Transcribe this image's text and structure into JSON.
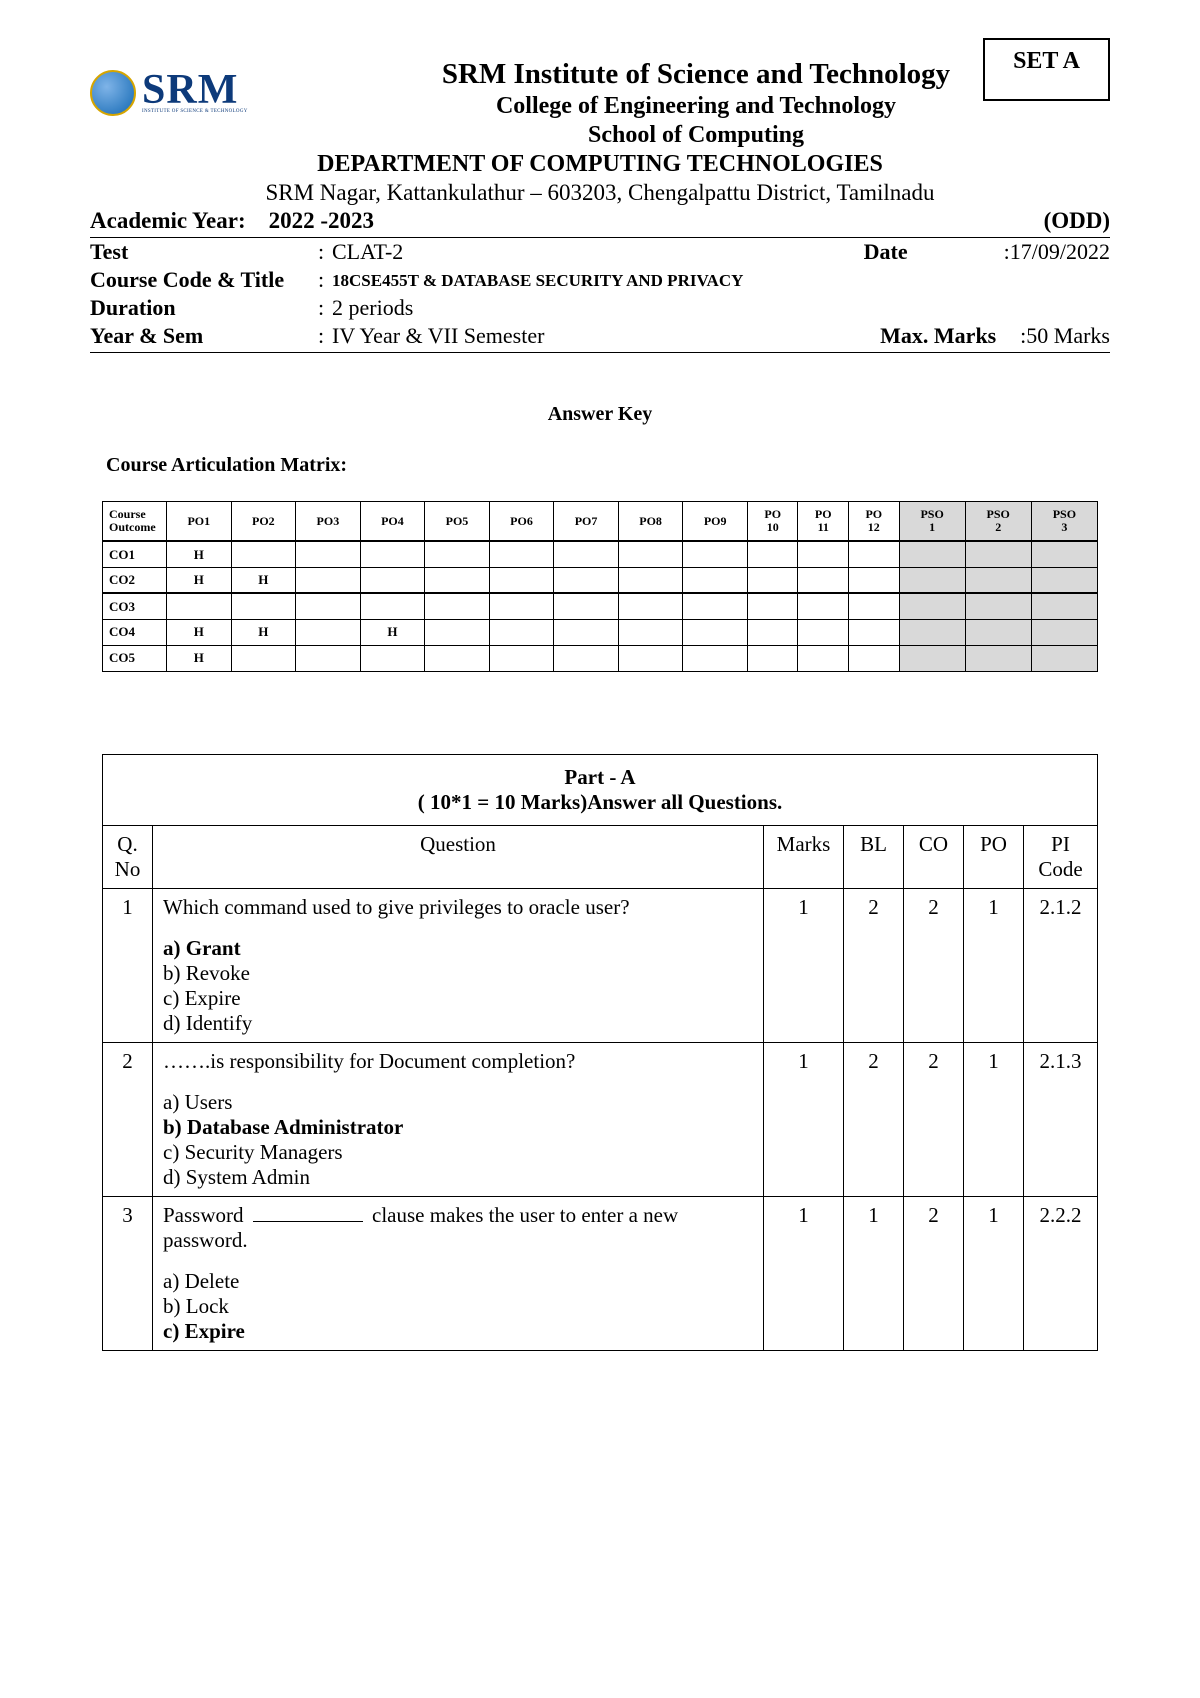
{
  "set_label": "SET A",
  "logo": {
    "text": "SRM",
    "sub": "INSTITUTE OF SCIENCE & TECHNOLOGY"
  },
  "header": {
    "line1": "SRM Institute of Science and Technology",
    "line2": "College of Engineering and Technology",
    "line3": "School of Computing",
    "dept": "DEPARTMENT OF COMPUTING TECHNOLOGIES",
    "address": "SRM Nagar, Kattankulathur – 603203, Chengalpattu District, Tamilnadu"
  },
  "academic_year": {
    "label": "Academic Year:",
    "value": "2022 -2023",
    "term": "(ODD)"
  },
  "info": {
    "test_label": "Test",
    "test_value": "CLAT-2",
    "date_label": "Date",
    "date_value": "17/09/2022",
    "cct_label": "Course Code & Title",
    "cct_value": "18CSE455T & DATABASE SECURITY AND PRIVACY",
    "duration_label": "Duration",
    "duration_value": "2 periods",
    "ys_label": "Year & Sem",
    "ys_value": "IV Year & VII Semester",
    "max_label": "Max. Marks",
    "max_value": "50 Marks"
  },
  "answer_key": "Answer Key",
  "cam_title": "Course Articulation Matrix:",
  "cam": {
    "headers": [
      "Course Outcome",
      "PO1",
      "PO2",
      "PO3",
      "PO4",
      "PO5",
      "PO6",
      "PO7",
      "PO8",
      "PO9",
      "PO 10",
      "PO 11",
      "PO 12",
      "PSO 1",
      "PSO 2",
      "PSO 3"
    ],
    "rows": [
      {
        "co": "CO1",
        "cells": [
          "H",
          "",
          "",
          "",
          "",
          "",
          "",
          "",
          "",
          "",
          "",
          "",
          "",
          "",
          ""
        ]
      },
      {
        "co": "CO2",
        "cells": [
          "H",
          "H",
          "",
          "",
          "",
          "",
          "",
          "",
          "",
          "",
          "",
          "",
          "",
          "",
          ""
        ]
      },
      {
        "co": "CO3",
        "cells": [
          "",
          "",
          "",
          "",
          "",
          "",
          "",
          "",
          "",
          "",
          "",
          "",
          "",
          "",
          ""
        ]
      },
      {
        "co": "CO4",
        "cells": [
          "H",
          "H",
          "",
          "H",
          "",
          "",
          "",
          "",
          "",
          "",
          "",
          "",
          "",
          "",
          ""
        ]
      },
      {
        "co": "CO5",
        "cells": [
          "H",
          "",
          "",
          "",
          "",
          "",
          "",
          "",
          "",
          "",
          "",
          "",
          "",
          "",
          ""
        ]
      }
    ],
    "pso_cols": [
      13,
      14,
      15
    ]
  },
  "part": {
    "title": "Part - A",
    "sub": "(  10*1 = 10  Marks)Answer all Questions.",
    "columns": [
      "Q. No",
      "Question",
      "Marks",
      "BL",
      "CO",
      "PO",
      "PI Code"
    ]
  },
  "questions": [
    {
      "no": "1",
      "text": "Which command used to give privileges to oracle user?",
      "options": [
        "a) Grant",
        "b) Revoke",
        "c) Expire",
        "d) Identify"
      ],
      "answer_index": 0,
      "marks": "1",
      "bl": "2",
      "co": "2",
      "po": "1",
      "pi": "2.1.2"
    },
    {
      "no": "2",
      "text": "…….is responsibility for Document completion?",
      "options": [
        "a) Users",
        "b) Database Administrator",
        "c) Security Managers",
        "d) System Admin"
      ],
      "answer_index": 1,
      "marks": "1",
      "bl": "2",
      "co": "2",
      "po": "1",
      "pi": "2.1.3"
    },
    {
      "no": "3",
      "text_pre": "Password ",
      "text_post": " clause makes the user to enter a new password.",
      "blank": true,
      "options": [
        "a) Delete",
        "b) Lock",
        "c) Expire"
      ],
      "answer_index": 2,
      "marks": "1",
      "bl": "1",
      "co": "2",
      "po": "1",
      "pi": "2.2.2"
    }
  ]
}
